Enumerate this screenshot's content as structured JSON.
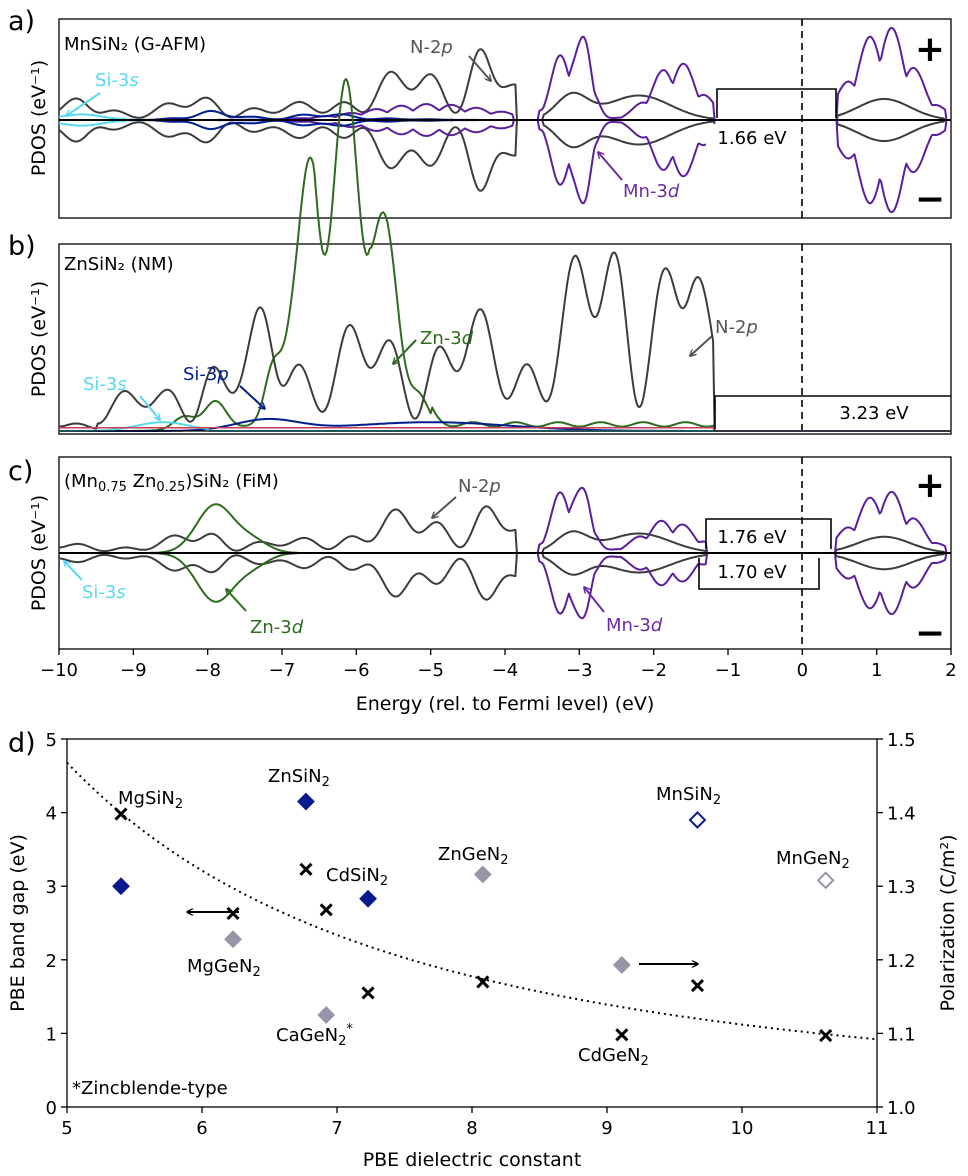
{
  "chart_data": [
    {
      "type": "line",
      "panel": "a)",
      "label": "MnSiN₂ (G-AFM)",
      "ylabel": "PDOS (eV⁻¹)",
      "xlim": [
        -10,
        2
      ],
      "fermi_level": 0,
      "gap_label": "1.66 eV",
      "gap": [
        -1.2,
        0.46
      ],
      "spin_up_mark": "+",
      "spin_down_mark": "−",
      "annotations": [
        {
          "text": "Si-3",
          "ital": "s",
          "color": "#5ad8f0"
        },
        {
          "text": "N-2",
          "ital": "p",
          "color": "#555555"
        },
        {
          "text": "Mn-3",
          "ital": "d",
          "color": "#6b2aa8"
        }
      ],
      "series": [
        {
          "name": "N-2p",
          "color": "#3c3c3c"
        },
        {
          "name": "Mn-3d",
          "color": "#5a1f9c"
        },
        {
          "name": "Si-3p",
          "color": "#001f8f"
        },
        {
          "name": "Si-3s",
          "color": "#5ad8f0"
        }
      ]
    },
    {
      "type": "line",
      "panel": "b)",
      "label": "ZnSiN₂ (NM)",
      "ylabel": "PDOS (eV⁻¹)",
      "xlim": [
        -10,
        2
      ],
      "fermi_level": 0,
      "gap_label": "3.23 eV",
      "gap": [
        -1.2,
        2.03
      ],
      "annotations": [
        {
          "text": "Si-3",
          "ital": "s",
          "color": "#5ad8f0"
        },
        {
          "text": "Si-3",
          "ital": "p",
          "color": "#001f8f"
        },
        {
          "text": "Zn-3",
          "ital": "d",
          "color": "#2e6b1f"
        },
        {
          "text": "N-2",
          "ital": "p",
          "color": "#555555"
        }
      ],
      "series": [
        {
          "name": "N-2p",
          "color": "#3c3c3c"
        },
        {
          "name": "Zn-3d",
          "color": "#2e6b1f"
        },
        {
          "name": "Si-3p",
          "color": "#001f8f"
        },
        {
          "name": "Si-3s",
          "color": "#5ad8f0"
        }
      ]
    },
    {
      "type": "line",
      "panel": "c)",
      "label_pre": "(Mn",
      "label_sub1": "0.75",
      "label_mid": " Zn",
      "label_sub2": "0.25",
      "label_post": ")SiN₂ (FiM)",
      "ylabel": "PDOS (eV⁻¹)",
      "xlim": [
        -10,
        2
      ],
      "xticks": [
        "−10",
        "−9",
        "−8",
        "−7",
        "−6",
        "−5",
        "−4",
        "−3",
        "−2",
        "−1",
        "0",
        "1",
        "2"
      ],
      "xlabel": "Energy (rel. to Fermi level) (eV)",
      "fermi_level": 0,
      "gap_up_label": "1.76 eV",
      "gap_dn_label": "1.70 eV",
      "spin_up_mark": "+",
      "spin_down_mark": "−",
      "annotations": [
        {
          "text": "Si-3",
          "ital": "s",
          "color": "#5ad8f0"
        },
        {
          "text": "Zn-3",
          "ital": "d",
          "color": "#2e6b1f"
        },
        {
          "text": "N-2",
          "ital": "p",
          "color": "#555555"
        },
        {
          "text": "Mn-3",
          "ital": "d",
          "color": "#6b2aa8"
        }
      ]
    },
    {
      "type": "scatter",
      "panel": "d)",
      "xlabel": "PBE dielectric constant",
      "ylabel": "PBE band gap (eV)",
      "y2label": "Polarization (C/m²)",
      "xlim": [
        5,
        11
      ],
      "ylim": [
        0,
        5
      ],
      "y2lim": [
        1.0,
        1.5
      ],
      "xticks": [
        "5",
        "6",
        "7",
        "8",
        "9",
        "10",
        "11"
      ],
      "yticks": [
        "0",
        "1",
        "2",
        "3",
        "4",
        "5"
      ],
      "y2ticks": [
        "1.0",
        "1.1",
        "1.2",
        "1.3",
        "1.4",
        "1.5"
      ],
      "footnote": "*Zincblende-type",
      "band_gap_points": [
        {
          "x": 5.4,
          "y": 3.0,
          "color": "#0a1a8c",
          "fill": true
        },
        {
          "x": 6.77,
          "y": 4.15,
          "color": "#0a1a8c",
          "fill": true
        },
        {
          "x": 7.23,
          "y": 2.83,
          "color": "#0a1a8c",
          "fill": true
        },
        {
          "x": 9.67,
          "y": 3.9,
          "color": "#0a1a8c",
          "fill": false
        },
        {
          "x": 6.23,
          "y": 2.28,
          "color": "#9a94a8",
          "fill": true
        },
        {
          "x": 6.92,
          "y": 1.25,
          "color": "#9a94a8",
          "fill": true
        },
        {
          "x": 8.08,
          "y": 3.16,
          "color": "#9a94a8",
          "fill": true
        },
        {
          "x": 9.11,
          "y": 1.93,
          "color": "#9a94a8",
          "fill": true
        },
        {
          "x": 10.62,
          "y": 3.08,
          "color": "#9a94a8",
          "fill": false
        }
      ],
      "polarization_points": [
        {
          "x": 5.4,
          "y": 1.398
        },
        {
          "x": 6.23,
          "y": 1.263
        },
        {
          "x": 6.77,
          "y": 1.323
        },
        {
          "x": 6.92,
          "y": 1.268
        },
        {
          "x": 7.23,
          "y": 1.155
        },
        {
          "x": 8.08,
          "y": 1.17
        },
        {
          "x": 9.11,
          "y": 1.098
        },
        {
          "x": 9.67,
          "y": 1.165
        },
        {
          "x": 10.62,
          "y": 1.097
        }
      ],
      "fit_curve": {
        "style": "dotted",
        "from": [
          5,
          4.68
        ],
        "to": [
          11,
          0.92
        ]
      },
      "arrows": [
        {
          "direction": "left",
          "axis": "band gap"
        },
        {
          "direction": "right",
          "axis": "polarization"
        }
      ],
      "labels": [
        {
          "base": "MgSiN",
          "sub": "2",
          "sup": ""
        },
        {
          "base": "ZnSiN",
          "sub": "2",
          "sup": ""
        },
        {
          "base": "CdSiN",
          "sub": "2",
          "sup": ""
        },
        {
          "base": "ZnGeN",
          "sub": "2",
          "sup": ""
        },
        {
          "base": "MnSiN",
          "sub": "2",
          "sup": ""
        },
        {
          "base": "MnGeN",
          "sub": "2",
          "sup": ""
        },
        {
          "base": "MgGeN",
          "sub": "2",
          "sup": ""
        },
        {
          "base": "CaGeN",
          "sub": "2",
          "sup": "*"
        },
        {
          "base": "CdGeN",
          "sub": "2",
          "sup": ""
        }
      ]
    }
  ]
}
